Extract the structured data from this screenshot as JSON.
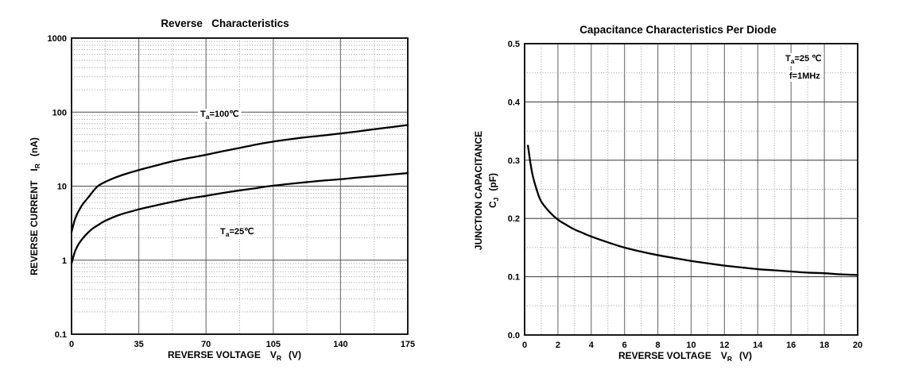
{
  "page": {
    "background": "#ffffff",
    "text_color": "#000000",
    "curve_color": "#000000",
    "frame_color": "#000000",
    "grid_major_x_color": "#7a7a7a",
    "grid_major_y_color": "#4a4a4a",
    "grid_minor_color": "#999999"
  },
  "chart_data": [
    {
      "id": "reverse-characteristics",
      "type": "line",
      "title": "Reverse   Characteristics",
      "xlabel": {
        "main": "REVERSE VOLTAGE",
        "sym": "V",
        "sub": "R",
        "unit": "(V)"
      },
      "ylabel": {
        "main": "REVERSE CURRENT",
        "sym": "I",
        "sub": "R",
        "unit": "(nA)"
      },
      "x_axis": {
        "min": 0,
        "max": 175,
        "ticks": [
          0,
          35,
          70,
          105,
          140,
          175
        ]
      },
      "y_axis": {
        "scale": "log",
        "min": 0.1,
        "max": 1000,
        "tick_values": [
          1000,
          100,
          10,
          1,
          0.1
        ],
        "tick_labels": [
          "1000",
          "100",
          "10",
          "1",
          "0.1"
        ]
      },
      "grid": {
        "x_major": [
          35,
          70,
          105,
          140
        ],
        "x_minor": [
          17.5,
          52.5,
          87.5,
          122.5,
          157.5
        ],
        "y_major": [
          1,
          10,
          100
        ],
        "y_minor": [
          0.2,
          0.3,
          0.4,
          0.5,
          0.6,
          0.7,
          0.8,
          0.9,
          2,
          3,
          4,
          5,
          6,
          7,
          8,
          9,
          20,
          30,
          40,
          50,
          60,
          70,
          80,
          90,
          200,
          300,
          400,
          500,
          600,
          700,
          800,
          900
        ]
      },
      "series": [
        {
          "name": "Ta=100C",
          "label": {
            "t": "T",
            "sub": "a",
            "rest": "=100℃"
          },
          "points": [
            [
              0,
              2.4
            ],
            [
              2,
              3.7
            ],
            [
              5,
              5.3
            ],
            [
              9,
              7.2
            ],
            [
              13.7,
              10
            ],
            [
              20,
              12.2
            ],
            [
              27,
              14.3
            ],
            [
              35,
              16.5
            ],
            [
              44,
              19
            ],
            [
              52,
              21.5
            ],
            [
              61,
              24
            ],
            [
              70,
              26.5
            ],
            [
              79,
              29.7
            ],
            [
              88,
              33
            ],
            [
              96,
              36.5
            ],
            [
              105,
              40
            ],
            [
              113,
              42.8
            ],
            [
              122,
              45.8
            ],
            [
              131,
              48.4
            ],
            [
              140,
              51.5
            ],
            [
              148,
              54.5
            ],
            [
              157,
              58.5
            ],
            [
              166,
              62.5
            ],
            [
              175,
              67
            ]
          ]
        },
        {
          "name": "Ta=25C",
          "label": {
            "t": "T",
            "sub": "a",
            "rest": "=25℃"
          },
          "points": [
            [
              0,
              0.9
            ],
            [
              2,
              1.35
            ],
            [
              5,
              1.85
            ],
            [
              10,
              2.55
            ],
            [
              14,
              3
            ],
            [
              17.5,
              3.4
            ],
            [
              25,
              4.1
            ],
            [
              35,
              4.85
            ],
            [
              44,
              5.5
            ],
            [
              52,
              6.1
            ],
            [
              61,
              6.8
            ],
            [
              70,
              7.4
            ],
            [
              79,
              8.1
            ],
            [
              88,
              8.8
            ],
            [
              96,
              9.4
            ],
            [
              103,
              10
            ],
            [
              113,
              10.7
            ],
            [
              122,
              11.3
            ],
            [
              131,
              11.9
            ],
            [
              140,
              12.4
            ],
            [
              148,
              13
            ],
            [
              157,
              13.6
            ],
            [
              166,
              14.3
            ],
            [
              175,
              15
            ]
          ]
        }
      ]
    },
    {
      "id": "capacitance-characteristics",
      "type": "line",
      "title": "Capacitance Characteristics Per Diode",
      "xlabel": {
        "main": "REVERSE VOLTAGE",
        "sym": "V",
        "sub": "R",
        "unit": "(V)"
      },
      "ylabel": {
        "line1": "JUNCTION CAPACITANCE",
        "sym": "C",
        "sub": "J",
        "unit": "(pF)"
      },
      "x_axis": {
        "min": 0,
        "max": 20,
        "ticks": [
          0,
          2,
          4,
          6,
          8,
          10,
          12,
          14,
          16,
          18,
          20
        ]
      },
      "y_axis": {
        "scale": "linear",
        "min": 0,
        "max": 0.5,
        "tick_values": [
          0.5,
          0.4,
          0.3,
          0.2,
          0.1,
          0
        ],
        "tick_labels": [
          "0.5",
          "0.4",
          "0.3",
          "0.2",
          "0.1",
          "0.0"
        ]
      },
      "grid": {
        "x_major": [
          2,
          4,
          6,
          8,
          10,
          12,
          14,
          16,
          18
        ],
        "x_minor": [
          1,
          3,
          5,
          7,
          9,
          11,
          13,
          15,
          17,
          19
        ],
        "y_major": [
          0.1,
          0.2,
          0.3,
          0.4
        ],
        "y_minor": [
          0.05,
          0.15,
          0.25,
          0.35,
          0.45
        ]
      },
      "annotations": {
        "cond": {
          "t": "T",
          "sub": "a",
          "rest": "=25 ℃"
        },
        "freq": {
          "text": "f=1MHz"
        }
      },
      "series": [
        {
          "name": "Cj",
          "points": [
            [
              0.2,
              0.325
            ],
            [
              0.35,
              0.295
            ],
            [
              0.5,
              0.272
            ],
            [
              0.75,
              0.247
            ],
            [
              1,
              0.229
            ],
            [
              1.5,
              0.211
            ],
            [
              2,
              0.198
            ],
            [
              2.5,
              0.189
            ],
            [
              3,
              0.181
            ],
            [
              3.5,
              0.175
            ],
            [
              4,
              0.169
            ],
            [
              5,
              0.159
            ],
            [
              6,
              0.15
            ],
            [
              7,
              0.143
            ],
            [
              8,
              0.137
            ],
            [
              9,
              0.132
            ],
            [
              10,
              0.127
            ],
            [
              11,
              0.123
            ],
            [
              12,
              0.119
            ],
            [
              13,
              0.116
            ],
            [
              14,
              0.113
            ],
            [
              15,
              0.111
            ],
            [
              16,
              0.109
            ],
            [
              17,
              0.107
            ],
            [
              18,
              0.106
            ],
            [
              19,
              0.104
            ],
            [
              20,
              0.103
            ]
          ]
        }
      ]
    }
  ]
}
